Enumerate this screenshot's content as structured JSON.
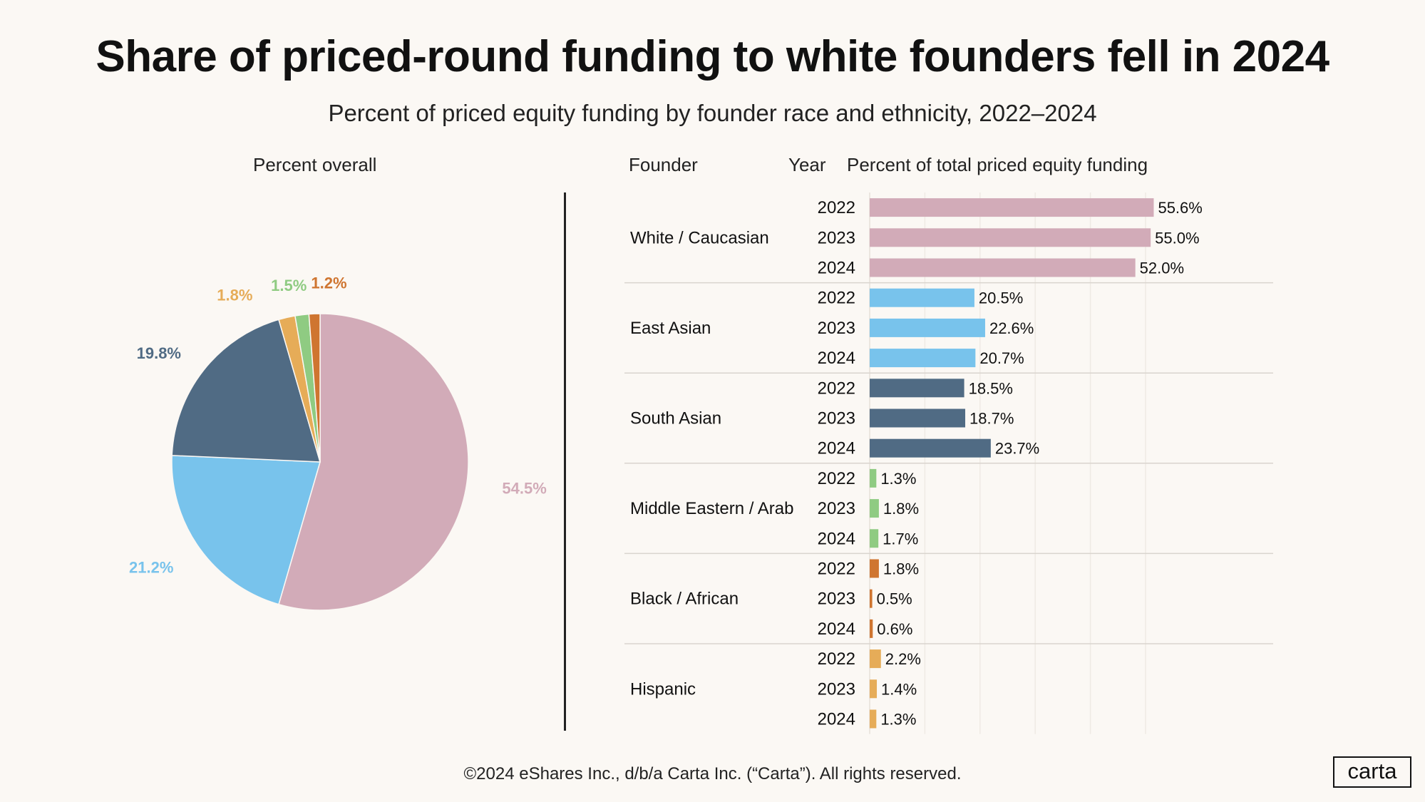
{
  "title": "Share of priced-round funding to white founders fell in 2024",
  "subtitle": "Percent of priced equity funding by founder race and ethnicity, 2022–2024",
  "headers": {
    "pie": "Percent overall",
    "founder": "Founder",
    "year": "Year",
    "bar": "Percent of total priced equity funding"
  },
  "footer": "©2024 eShares Inc., d/b/a Carta Inc. (“Carta”). All rights reserved.",
  "logo": "carta",
  "chart_data": [
    {
      "type": "pie",
      "title": "Percent overall",
      "slices": [
        {
          "label": "White / Caucasian",
          "value": 54.5,
          "text": "54.5%",
          "color": "#D2ABB8"
        },
        {
          "label": "East Asian",
          "value": 21.2,
          "text": "21.2%",
          "color": "#78C3EC"
        },
        {
          "label": "South Asian",
          "value": 19.8,
          "text": "19.8%",
          "color": "#506B84"
        },
        {
          "label": "Hispanic",
          "value": 1.8,
          "text": "1.8%",
          "color": "#E6AC58"
        },
        {
          "label": "Middle Eastern / Arab",
          "value": 1.5,
          "text": "1.5%",
          "color": "#8FCB82"
        },
        {
          "label": "Black / African",
          "value": 1.2,
          "text": "1.2%",
          "color": "#CF7530"
        }
      ]
    },
    {
      "type": "bar",
      "orientation": "horizontal",
      "title": "Percent of total priced equity funding",
      "xlim": [
        0,
        60
      ],
      "groups": [
        {
          "founder": "White / Caucasian",
          "color": "#D2ABB8",
          "bars": [
            {
              "year": "2022",
              "value": 55.6,
              "text": "55.6%"
            },
            {
              "year": "2023",
              "value": 55.0,
              "text": "55.0%"
            },
            {
              "year": "2024",
              "value": 52.0,
              "text": "52.0%"
            }
          ]
        },
        {
          "founder": "East Asian",
          "color": "#78C3EC",
          "bars": [
            {
              "year": "2022",
              "value": 20.5,
              "text": "20.5%"
            },
            {
              "year": "2023",
              "value": 22.6,
              "text": "22.6%"
            },
            {
              "year": "2024",
              "value": 20.7,
              "text": "20.7%"
            }
          ]
        },
        {
          "founder": "South Asian",
          "color": "#506B84",
          "bars": [
            {
              "year": "2022",
              "value": 18.5,
              "text": "18.5%"
            },
            {
              "year": "2023",
              "value": 18.7,
              "text": "18.7%"
            },
            {
              "year": "2024",
              "value": 23.7,
              "text": "23.7%"
            }
          ]
        },
        {
          "founder": "Middle Eastern / Arab",
          "color": "#8FCB82",
          "bars": [
            {
              "year": "2022",
              "value": 1.3,
              "text": "1.3%"
            },
            {
              "year": "2023",
              "value": 1.8,
              "text": "1.8%"
            },
            {
              "year": "2024",
              "value": 1.7,
              "text": "1.7%"
            }
          ]
        },
        {
          "founder": "Black / African",
          "color": "#CF7530",
          "bars": [
            {
              "year": "2022",
              "value": 1.8,
              "text": "1.8%"
            },
            {
              "year": "2023",
              "value": 0.5,
              "text": "0.5%"
            },
            {
              "year": "2024",
              "value": 0.6,
              "text": "0.6%"
            }
          ]
        },
        {
          "founder": "Hispanic",
          "color": "#E6AC58",
          "bars": [
            {
              "year": "2022",
              "value": 2.2,
              "text": "2.2%"
            },
            {
              "year": "2023",
              "value": 1.4,
              "text": "1.4%"
            },
            {
              "year": "2024",
              "value": 1.3,
              "text": "1.3%"
            }
          ]
        }
      ]
    }
  ]
}
